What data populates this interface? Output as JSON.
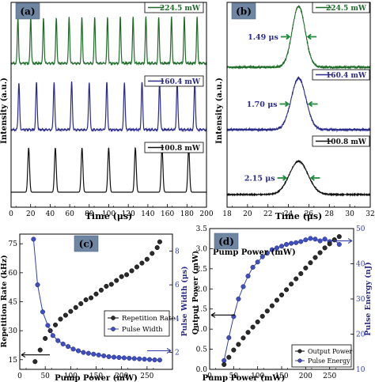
{
  "chart_data": [
    {
      "id": "a",
      "type": "line",
      "panel_label": "(a)",
      "xlabel": "Time (μs)",
      "ylabel": "Intensity (a.u.)",
      "xlim": [
        0,
        200
      ],
      "xticks": [
        "0",
        "20",
        "40",
        "60",
        "80",
        "100",
        "120",
        "140",
        "160",
        "180",
        "200"
      ],
      "series": [
        {
          "name": "224.5 mW",
          "color": "#1e6b28",
          "period_us": 13.1,
          "first_peak_us": 7,
          "pulse_width_us": 1.49
        },
        {
          "name": "160.4 mW",
          "color": "#2a2a8c",
          "period_us": 18.0,
          "first_peak_us": 8,
          "pulse_width_us": 1.7
        },
        {
          "name": "100.8 mW",
          "color": "#111111",
          "period_us": 27.3,
          "first_peak_us": 18,
          "pulse_width_us": 2.15
        }
      ]
    },
    {
      "id": "b",
      "type": "line",
      "panel_label": "(b)",
      "xlabel": "Time (μs)",
      "ylabel": "Intensity (a.u.)",
      "xlim": [
        18,
        32
      ],
      "xticks": [
        "18",
        "20",
        "22",
        "24",
        "26",
        "28",
        "30",
        "32"
      ],
      "center_us": 25,
      "series": [
        {
          "name": "224.5 mW",
          "color": "#1e6b28",
          "fwhm_label": "1.49 μs",
          "fwhm_us": 1.49
        },
        {
          "name": "160.4 mW",
          "color": "#2a2a8c",
          "fwhm_label": "1.70 μs",
          "fwhm_us": 1.7
        },
        {
          "name": "100.8 mW",
          "color": "#111111",
          "fwhm_label": "2.15 μs",
          "fwhm_us": 2.15
        }
      ]
    },
    {
      "id": "c",
      "type": "scatter",
      "panel_label": "(c)",
      "xlabel": "Pump Power (mW)",
      "ylabel": "Repetition Rate (kHz)",
      "y2label": "Pulse Width (μs)",
      "xlim": [
        0,
        300
      ],
      "ylim": [
        10,
        80
      ],
      "y2lim": [
        1,
        9
      ],
      "xticks": [
        "0",
        "50",
        "100",
        "150",
        "200",
        "250"
      ],
      "yticks": [
        "15",
        "30",
        "45",
        "60",
        "75"
      ],
      "y2ticks": [
        "2",
        "4",
        "6",
        "8"
      ],
      "legend": [
        "Repetition Rate",
        "Pulse Width"
      ],
      "series": [
        {
          "name": "Repetition Rate",
          "color": "#222222",
          "x": [
            30,
            40,
            50,
            60,
            70,
            80,
            90,
            100,
            110,
            120,
            130,
            140,
            150,
            160,
            170,
            180,
            190,
            200,
            210,
            220,
            230,
            240,
            250,
            260,
            270,
            275
          ],
          "y": [
            14,
            20,
            26,
            30,
            33,
            36,
            38,
            40,
            42,
            44,
            46,
            47,
            49,
            51,
            53,
            54,
            56,
            58,
            59,
            61,
            63,
            65,
            67,
            70,
            73,
            76
          ]
        },
        {
          "name": "Pulse Width",
          "color": "#3340a8",
          "x": [
            27,
            35,
            45,
            55,
            65,
            75,
            85,
            95,
            105,
            115,
            125,
            135,
            145,
            155,
            165,
            175,
            185,
            195,
            205,
            215,
            225,
            235,
            245,
            255,
            265,
            275
          ],
          "y": [
            8.7,
            6.0,
            4.4,
            3.6,
            3.0,
            2.7,
            2.5,
            2.35,
            2.2,
            2.1,
            2.0,
            1.95,
            1.9,
            1.85,
            1.8,
            1.75,
            1.72,
            1.7,
            1.68,
            1.66,
            1.64,
            1.62,
            1.6,
            1.58,
            1.56,
            1.55
          ]
        }
      ]
    },
    {
      "id": "d",
      "type": "scatter",
      "panel_label": "(d)",
      "xlabel": "Pump Power (mW)",
      "ylabel": "Output Power (mW)",
      "y2label": "Pulse Energy (nJ)",
      "xlim": [
        0,
        300
      ],
      "ylim": [
        0,
        3.5
      ],
      "y2lim": [
        10,
        50
      ],
      "xticks": [
        "0",
        "50",
        "100",
        "150",
        "200",
        "250"
      ],
      "yticks": [
        "0.0",
        "0.5",
        "1.0",
        "1.5",
        "2.0",
        "2.5",
        "3.0",
        "3.5"
      ],
      "y2ticks": [
        "10",
        "20",
        "30",
        "40",
        "50"
      ],
      "legend": [
        "Output Power",
        "Pulse Energy"
      ],
      "series": [
        {
          "name": "Output Power",
          "color": "#222222",
          "x": [
            30,
            40,
            50,
            60,
            70,
            80,
            90,
            100,
            110,
            120,
            130,
            140,
            150,
            160,
            170,
            180,
            190,
            200,
            210,
            220,
            230,
            240,
            250,
            260,
            270
          ],
          "y": [
            0.12,
            0.3,
            0.48,
            0.62,
            0.78,
            0.92,
            1.05,
            1.18,
            1.32,
            1.45,
            1.58,
            1.72,
            1.85,
            1.98,
            2.12,
            2.25,
            2.38,
            2.52,
            2.65,
            2.78,
            2.9,
            3.02,
            3.12,
            3.22,
            3.3
          ]
        },
        {
          "name": "Pulse Energy",
          "color": "#3340a8",
          "x": [
            30,
            40,
            50,
            60,
            70,
            80,
            90,
            100,
            110,
            120,
            130,
            140,
            150,
            160,
            170,
            180,
            190,
            200,
            210,
            220,
            230,
            240,
            250,
            260,
            270
          ],
          "y": [
            12.5,
            19,
            25,
            30,
            33.5,
            36.5,
            39,
            40.5,
            42,
            43,
            44,
            44.5,
            45,
            45.5,
            45.8,
            46,
            46.3,
            46.8,
            47.2,
            47.0,
            46.5,
            47.0,
            46.3,
            46.8,
            45.5
          ]
        }
      ]
    }
  ]
}
